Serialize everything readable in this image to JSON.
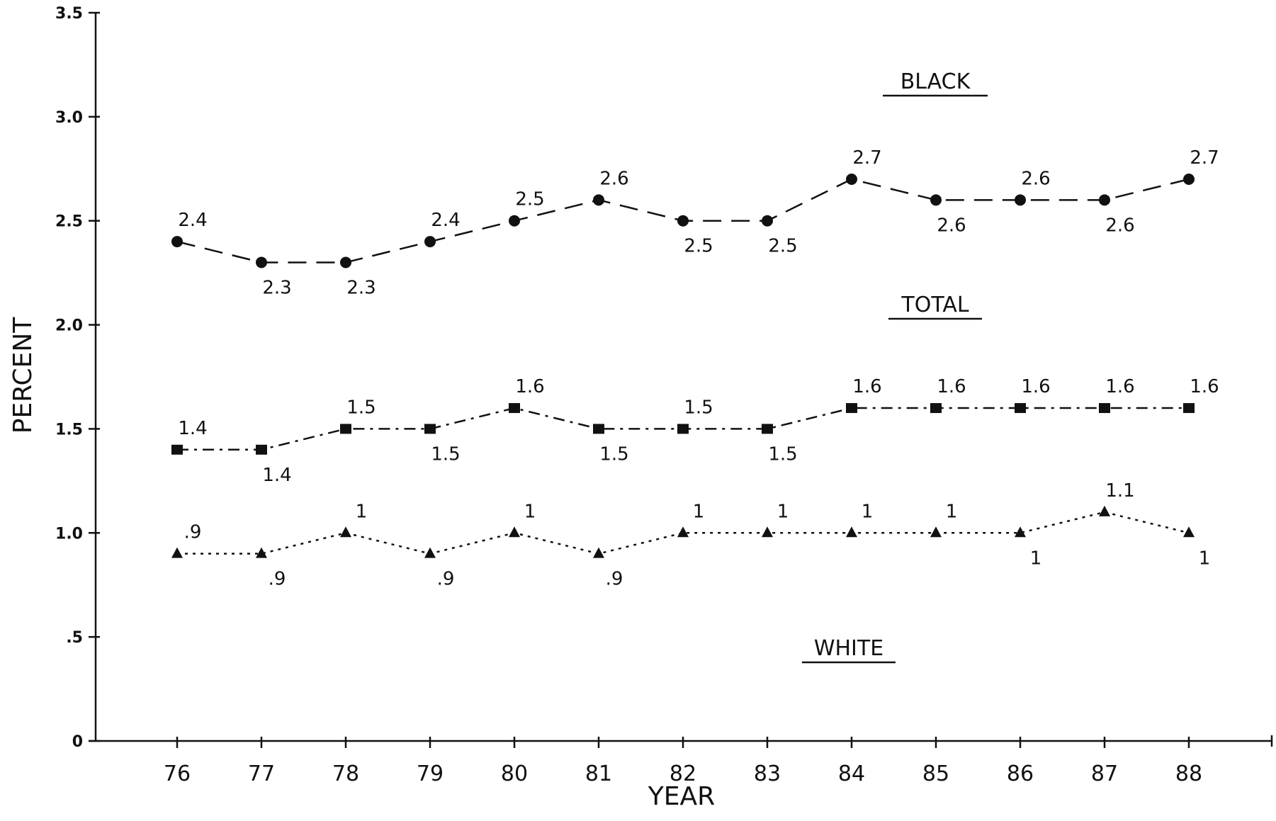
{
  "chart_data": {
    "type": "line",
    "xlabel": "YEAR",
    "ylabel": "PERCENT",
    "ylim": [
      0,
      3.5
    ],
    "categories": [
      "76",
      "77",
      "78",
      "79",
      "80",
      "81",
      "82",
      "83",
      "84",
      "85",
      "86",
      "87",
      "88"
    ],
    "y_ticks": [
      {
        "value": 0,
        "label": "0"
      },
      {
        "value": 0.5,
        "label": ".5"
      },
      {
        "value": 1.0,
        "label": "1.0"
      },
      {
        "value": 1.5,
        "label": "1.5"
      },
      {
        "value": 2.0,
        "label": "2.0"
      },
      {
        "value": 2.5,
        "label": "2.5"
      },
      {
        "value": 3.0,
        "label": "3.0"
      },
      {
        "value": 3.5,
        "label": "3.5"
      }
    ],
    "grid": false,
    "series": [
      {
        "name": "BLACK",
        "marker": "circle",
        "line_style": "long-dash",
        "values": [
          2.4,
          2.3,
          2.3,
          2.4,
          2.5,
          2.6,
          2.5,
          2.5,
          2.7,
          2.6,
          2.6,
          2.6,
          2.7
        ],
        "labels": [
          "2.4",
          "2.3",
          "2.3",
          "2.4",
          "2.5",
          "2.6",
          "2.5",
          "2.5",
          "2.7",
          "2.6",
          "2.6",
          "2.6",
          "2.7"
        ],
        "label_side": [
          "above",
          "below",
          "below",
          "above",
          "above",
          "above",
          "below",
          "below",
          "above",
          "below",
          "above",
          "below",
          "above"
        ]
      },
      {
        "name": "TOTAL",
        "marker": "square",
        "line_style": "dash-dot",
        "values": [
          1.4,
          1.4,
          1.5,
          1.5,
          1.6,
          1.5,
          1.5,
          1.5,
          1.6,
          1.6,
          1.6,
          1.6,
          1.6
        ],
        "labels": [
          "1.4",
          "1.4",
          "1.5",
          "1.5",
          "1.6",
          "1.5",
          "1.5",
          "1.5",
          "1.6",
          "1.6",
          "1.6",
          "1.6",
          "1.6"
        ],
        "label_side": [
          "above",
          "below",
          "above",
          "below",
          "above",
          "below",
          "above",
          "below",
          "above",
          "above",
          "above",
          "above",
          "above"
        ]
      },
      {
        "name": "WHITE",
        "marker": "triangle",
        "line_style": "dotted",
        "values": [
          0.9,
          0.9,
          1.0,
          0.9,
          1.0,
          0.9,
          1.0,
          1.0,
          1.0,
          1.0,
          1.0,
          1.1,
          1.0
        ],
        "labels": [
          ".9",
          ".9",
          "1",
          ".9",
          "1",
          ".9",
          "1",
          "1",
          "1",
          "1",
          "1",
          "1.1",
          "1"
        ],
        "label_side": [
          "above",
          "below",
          "above",
          "below",
          "above",
          "below",
          "above",
          "above",
          "above",
          "above",
          "below",
          "above",
          "below"
        ]
      }
    ]
  }
}
